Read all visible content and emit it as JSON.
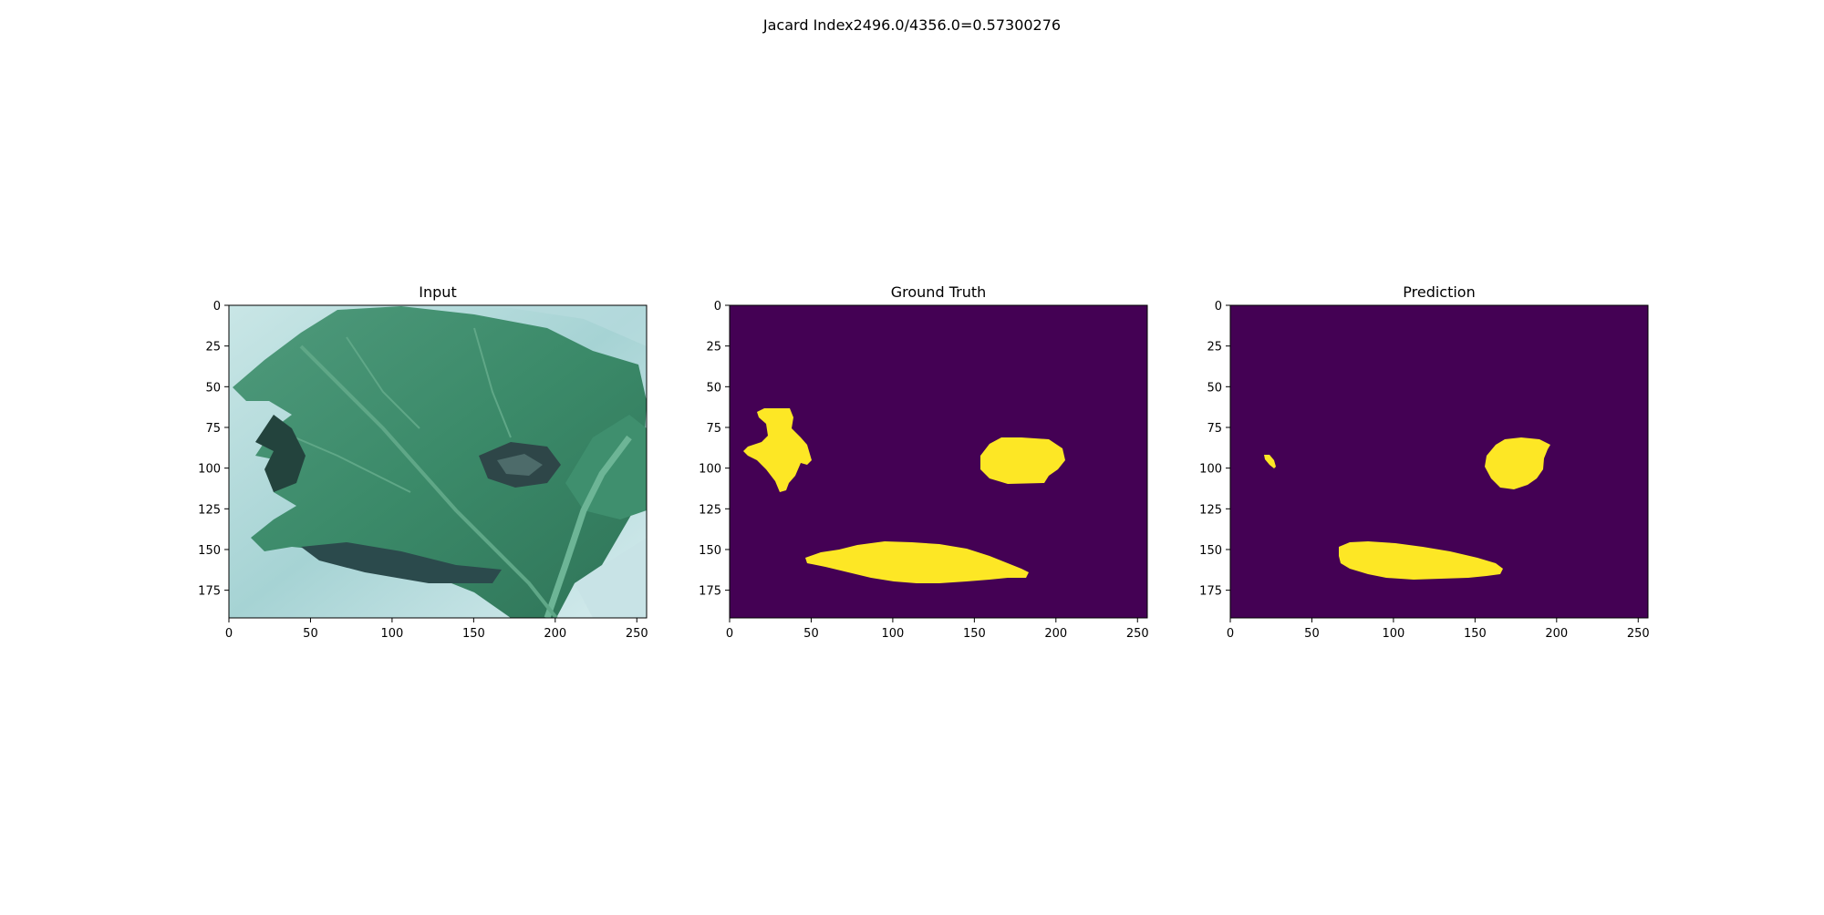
{
  "suptitle": "Jacard Index2496.0/4356.0=0.57300276",
  "x_ticks": [
    "0",
    "50",
    "100",
    "150",
    "200",
    "250"
  ],
  "y_ticks": [
    "0",
    "25",
    "50",
    "75",
    "100",
    "125",
    "150",
    "175"
  ],
  "panels": [
    {
      "title": "Input",
      "kind": "image"
    },
    {
      "title": "Ground Truth",
      "kind": "mask"
    },
    {
      "title": "Prediction",
      "kind": "mask"
    }
  ],
  "colors": {
    "mask_background": "#440154",
    "mask_foreground": "#fde725"
  }
}
